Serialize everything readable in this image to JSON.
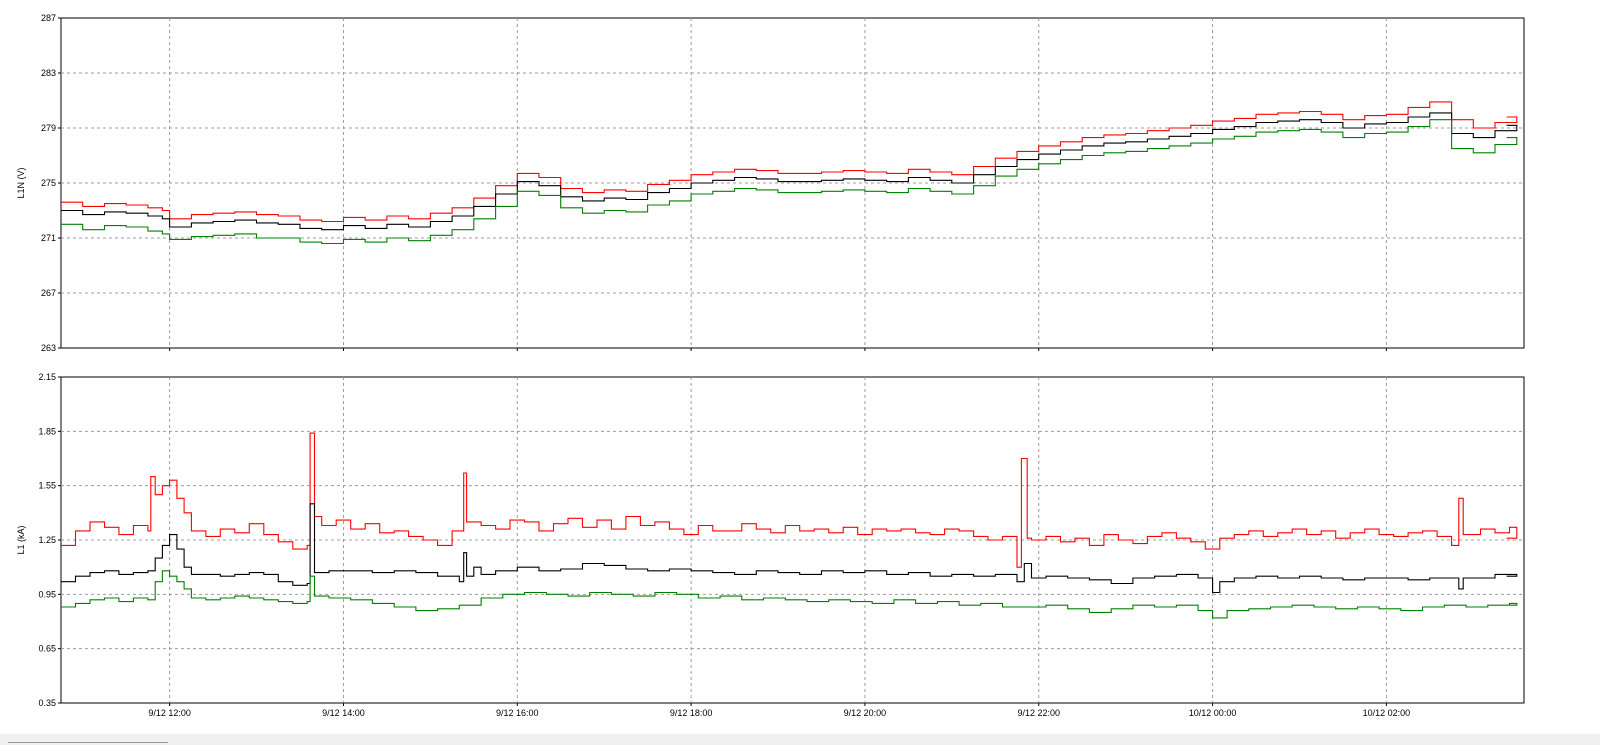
{
  "chart_data": [
    {
      "type": "line",
      "ylabel": "L1N (V)",
      "ylim": [
        263,
        287
      ],
      "yticks": [
        263,
        267,
        271,
        275,
        279,
        283,
        287
      ],
      "ytick_labels": [
        "263",
        "267",
        "271",
        "275",
        "279",
        "283",
        "287"
      ],
      "x_range": [
        "9/12 10:45",
        "10/12 03:35"
      ],
      "grid": true,
      "series": [
        {
          "color": "#ff0000",
          "step": true,
          "x": [
            -75,
            -60,
            -45,
            -30,
            -15,
            -5,
            0,
            15,
            30,
            45,
            60,
            75,
            90,
            105,
            120,
            135,
            150,
            165,
            180,
            195,
            210,
            225,
            240,
            255,
            270,
            285,
            300,
            315,
            330,
            345,
            360,
            375,
            390,
            405,
            420,
            435,
            450,
            465,
            480,
            495,
            510,
            525,
            540,
            555,
            570,
            585,
            600,
            615,
            630,
            645,
            660,
            675,
            690,
            705,
            720,
            735,
            750,
            765,
            780,
            795,
            810,
            825,
            840,
            855,
            870,
            885,
            900,
            915,
            930
          ],
          "values": [
            273.6,
            273.3,
            273.5,
            273.4,
            273.2,
            273.0,
            272.4,
            272.7,
            272.8,
            272.9,
            272.7,
            272.6,
            272.3,
            272.2,
            272.5,
            272.3,
            272.6,
            272.4,
            272.8,
            273.2,
            273.9,
            274.8,
            275.7,
            275.4,
            274.6,
            274.3,
            274.5,
            274.4,
            274.9,
            275.2,
            275.6,
            275.8,
            276.0,
            275.9,
            275.7,
            275.7,
            275.8,
            275.9,
            275.8,
            275.7,
            276.0,
            275.8,
            275.6,
            276.2,
            276.8,
            277.3,
            277.7,
            278.0,
            278.3,
            278.5,
            278.6,
            278.8,
            279.0,
            279.2,
            279.5,
            279.7,
            280.0,
            280.1,
            280.2,
            280.0,
            279.6,
            279.9,
            280.0,
            280.5,
            280.9,
            279.6,
            279.0,
            279.4,
            279.8
          ]
        },
        {
          "color": "#000000",
          "step": true,
          "x": [
            -75,
            -60,
            -45,
            -30,
            -15,
            -5,
            0,
            15,
            30,
            45,
            60,
            75,
            90,
            105,
            120,
            135,
            150,
            165,
            180,
            195,
            210,
            225,
            240,
            255,
            270,
            285,
            300,
            315,
            330,
            345,
            360,
            375,
            390,
            405,
            420,
            435,
            450,
            465,
            480,
            495,
            510,
            525,
            540,
            555,
            570,
            585,
            600,
            615,
            630,
            645,
            660,
            675,
            690,
            705,
            720,
            735,
            750,
            765,
            780,
            795,
            810,
            825,
            840,
            855,
            870,
            885,
            900,
            915,
            930
          ],
          "values": [
            273.0,
            272.7,
            272.9,
            272.8,
            272.6,
            272.4,
            271.8,
            272.1,
            272.2,
            272.3,
            272.1,
            272.0,
            271.7,
            271.6,
            271.9,
            271.7,
            272.0,
            271.8,
            272.2,
            272.6,
            273.3,
            274.2,
            275.1,
            274.8,
            274.0,
            273.7,
            273.9,
            273.8,
            274.3,
            274.6,
            275.0,
            275.2,
            275.4,
            275.3,
            275.1,
            275.1,
            275.2,
            275.3,
            275.2,
            275.1,
            275.4,
            275.2,
            275.0,
            275.6,
            276.2,
            276.7,
            277.1,
            277.4,
            277.7,
            277.9,
            278.0,
            278.2,
            278.4,
            278.6,
            278.9,
            279.1,
            279.4,
            279.5,
            279.6,
            279.4,
            279.0,
            279.3,
            279.4,
            279.8,
            280.1,
            278.6,
            278.3,
            278.8,
            279.2
          ]
        },
        {
          "color": "#008000",
          "step": true,
          "x": [
            -75,
            -60,
            -45,
            -30,
            -15,
            -5,
            0,
            15,
            30,
            45,
            60,
            75,
            90,
            105,
            120,
            135,
            150,
            165,
            180,
            195,
            210,
            225,
            240,
            255,
            270,
            285,
            300,
            315,
            330,
            345,
            360,
            375,
            390,
            405,
            420,
            435,
            450,
            465,
            480,
            495,
            510,
            525,
            540,
            555,
            570,
            585,
            600,
            615,
            630,
            645,
            660,
            675,
            690,
            705,
            720,
            735,
            750,
            765,
            780,
            795,
            810,
            825,
            840,
            855,
            870,
            885,
            900,
            915,
            930
          ],
          "values": [
            272.0,
            271.6,
            271.9,
            271.8,
            271.5,
            271.3,
            270.9,
            271.1,
            271.2,
            271.3,
            271.0,
            271.0,
            270.7,
            270.6,
            270.9,
            270.7,
            271.0,
            270.8,
            271.2,
            271.6,
            272.4,
            273.3,
            274.4,
            274.1,
            273.2,
            272.8,
            273.0,
            272.9,
            273.4,
            273.7,
            274.2,
            274.4,
            274.6,
            274.5,
            274.3,
            274.3,
            274.4,
            274.5,
            274.4,
            274.3,
            274.6,
            274.4,
            274.2,
            274.8,
            275.5,
            276.0,
            276.4,
            276.7,
            277.0,
            277.2,
            277.3,
            277.5,
            277.7,
            277.9,
            278.2,
            278.4,
            278.7,
            278.8,
            278.9,
            278.7,
            278.3,
            278.6,
            278.7,
            279.1,
            279.6,
            277.5,
            277.2,
            277.8,
            278.3
          ]
        }
      ]
    },
    {
      "type": "line",
      "ylabel": "L1 (kA)",
      "ylim": [
        0.35,
        2.15
      ],
      "yticks": [
        0.35,
        0.65,
        0.95,
        1.25,
        1.55,
        1.85,
        2.15
      ],
      "ytick_labels": [
        "0.35",
        "0.65",
        "0.95",
        "1.25",
        "1.55",
        "1.85",
        "2.15"
      ],
      "x_range": [
        "9/12 10:45",
        "10/12 03:35"
      ],
      "grid": true,
      "x_ticks": [
        {
          "t": 0,
          "label": "9/12 12:00"
        },
        {
          "t": 120,
          "label": "9/12 14:00"
        },
        {
          "t": 240,
          "label": "9/12 16:00"
        },
        {
          "t": 360,
          "label": "9/12 18:00"
        },
        {
          "t": 480,
          "label": "9/12 20:00"
        },
        {
          "t": 600,
          "label": "9/12 22:00"
        },
        {
          "t": 720,
          "label": "10/12 00:00"
        },
        {
          "t": 840,
          "label": "10/12 02:00"
        }
      ],
      "series": [
        {
          "color": "#ff0000",
          "step": true,
          "x": [
            -75,
            -65,
            -55,
            -45,
            -35,
            -25,
            -15,
            -13,
            -10,
            -5,
            0,
            5,
            10,
            15,
            25,
            35,
            45,
            55,
            65,
            75,
            85,
            95,
            97,
            100,
            105,
            115,
            125,
            135,
            145,
            155,
            165,
            175,
            185,
            195,
            203,
            205,
            215,
            225,
            235,
            245,
            255,
            265,
            275,
            285,
            295,
            305,
            315,
            325,
            335,
            345,
            355,
            365,
            375,
            385,
            395,
            405,
            415,
            425,
            435,
            445,
            455,
            465,
            475,
            485,
            495,
            505,
            515,
            525,
            535,
            545,
            555,
            565,
            575,
            585,
            588,
            592,
            595,
            605,
            615,
            625,
            635,
            645,
            655,
            665,
            675,
            685,
            695,
            705,
            715,
            725,
            735,
            745,
            755,
            765,
            775,
            785,
            795,
            805,
            815,
            825,
            835,
            845,
            855,
            865,
            875,
            885,
            890,
            893,
            905,
            915,
            925,
            930
          ],
          "values": [
            1.22,
            1.3,
            1.35,
            1.32,
            1.28,
            1.33,
            1.3,
            1.6,
            1.5,
            1.55,
            1.58,
            1.48,
            1.4,
            1.3,
            1.27,
            1.31,
            1.29,
            1.34,
            1.28,
            1.24,
            1.2,
            1.22,
            1.84,
            1.38,
            1.33,
            1.36,
            1.31,
            1.34,
            1.29,
            1.3,
            1.27,
            1.25,
            1.22,
            1.3,
            1.62,
            1.35,
            1.33,
            1.31,
            1.36,
            1.35,
            1.3,
            1.34,
            1.37,
            1.32,
            1.36,
            1.31,
            1.38,
            1.33,
            1.35,
            1.31,
            1.28,
            1.33,
            1.3,
            1.3,
            1.34,
            1.31,
            1.29,
            1.33,
            1.3,
            1.31,
            1.29,
            1.32,
            1.28,
            1.31,
            1.3,
            1.31,
            1.29,
            1.28,
            1.31,
            1.3,
            1.27,
            1.25,
            1.27,
            1.1,
            1.7,
            1.26,
            1.25,
            1.27,
            1.24,
            1.26,
            1.22,
            1.28,
            1.25,
            1.23,
            1.27,
            1.29,
            1.26,
            1.24,
            1.2,
            1.26,
            1.28,
            1.3,
            1.27,
            1.29,
            1.31,
            1.28,
            1.3,
            1.26,
            1.29,
            1.31,
            1.28,
            1.27,
            1.29,
            1.3,
            1.27,
            1.22,
            1.48,
            1.28,
            1.31,
            1.29,
            1.32,
            1.26
          ]
        },
        {
          "color": "#000000",
          "step": true,
          "x": [
            -75,
            -65,
            -55,
            -45,
            -35,
            -25,
            -15,
            -10,
            -5,
            0,
            5,
            10,
            15,
            25,
            35,
            45,
            55,
            65,
            75,
            85,
            95,
            97,
            100,
            110,
            125,
            140,
            155,
            170,
            185,
            200,
            203,
            205,
            210,
            215,
            225,
            240,
            255,
            270,
            285,
            300,
            315,
            330,
            345,
            360,
            375,
            390,
            405,
            420,
            435,
            450,
            465,
            480,
            495,
            510,
            525,
            540,
            555,
            570,
            585,
            590,
            595,
            605,
            620,
            635,
            650,
            665,
            680,
            695,
            710,
            720,
            725,
            735,
            750,
            765,
            780,
            795,
            810,
            825,
            840,
            855,
            870,
            885,
            890,
            893,
            900,
            915,
            930
          ],
          "values": [
            1.02,
            1.05,
            1.07,
            1.08,
            1.06,
            1.07,
            1.08,
            1.15,
            1.22,
            1.28,
            1.2,
            1.1,
            1.06,
            1.06,
            1.05,
            1.06,
            1.07,
            1.06,
            1.02,
            1.0,
            1.01,
            1.45,
            1.07,
            1.08,
            1.08,
            1.07,
            1.08,
            1.07,
            1.05,
            1.02,
            1.18,
            1.05,
            1.1,
            1.06,
            1.08,
            1.1,
            1.08,
            1.09,
            1.12,
            1.11,
            1.09,
            1.08,
            1.09,
            1.08,
            1.07,
            1.06,
            1.08,
            1.07,
            1.06,
            1.08,
            1.07,
            1.08,
            1.06,
            1.07,
            1.05,
            1.06,
            1.05,
            1.06,
            1.02,
            1.12,
            1.04,
            1.05,
            1.04,
            1.03,
            1.01,
            1.04,
            1.05,
            1.06,
            1.04,
            0.96,
            1.02,
            1.04,
            1.05,
            1.04,
            1.05,
            1.04,
            1.03,
            1.04,
            1.04,
            1.03,
            1.04,
            1.04,
            0.98,
            1.04,
            1.04,
            1.06,
            1.05
          ]
        },
        {
          "color": "#008000",
          "step": true,
          "x": [
            -75,
            -65,
            -55,
            -45,
            -35,
            -25,
            -15,
            -10,
            -5,
            0,
            5,
            10,
            15,
            25,
            35,
            45,
            55,
            65,
            75,
            85,
            95,
            97,
            100,
            110,
            125,
            140,
            155,
            170,
            185,
            200,
            215,
            230,
            245,
            260,
            275,
            290,
            305,
            320,
            335,
            350,
            365,
            380,
            395,
            410,
            425,
            440,
            455,
            470,
            485,
            500,
            515,
            530,
            545,
            560,
            575,
            590,
            605,
            620,
            635,
            650,
            665,
            680,
            695,
            710,
            720,
            730,
            745,
            760,
            775,
            790,
            805,
            820,
            835,
            850,
            865,
            880,
            895,
            910,
            925,
            930
          ],
          "values": [
            0.88,
            0.9,
            0.92,
            0.93,
            0.91,
            0.93,
            0.92,
            1.02,
            1.08,
            1.05,
            1.02,
            0.98,
            0.93,
            0.92,
            0.93,
            0.94,
            0.93,
            0.92,
            0.91,
            0.9,
            0.91,
            1.05,
            0.94,
            0.93,
            0.92,
            0.9,
            0.88,
            0.86,
            0.87,
            0.89,
            0.93,
            0.95,
            0.96,
            0.95,
            0.94,
            0.96,
            0.95,
            0.94,
            0.96,
            0.95,
            0.93,
            0.94,
            0.92,
            0.93,
            0.92,
            0.91,
            0.92,
            0.91,
            0.9,
            0.92,
            0.9,
            0.91,
            0.89,
            0.9,
            0.88,
            0.88,
            0.89,
            0.87,
            0.85,
            0.87,
            0.89,
            0.88,
            0.89,
            0.86,
            0.82,
            0.86,
            0.87,
            0.88,
            0.89,
            0.88,
            0.87,
            0.88,
            0.87,
            0.86,
            0.88,
            0.89,
            0.88,
            0.89,
            0.9,
            0.89
          ]
        }
      ]
    }
  ]
}
